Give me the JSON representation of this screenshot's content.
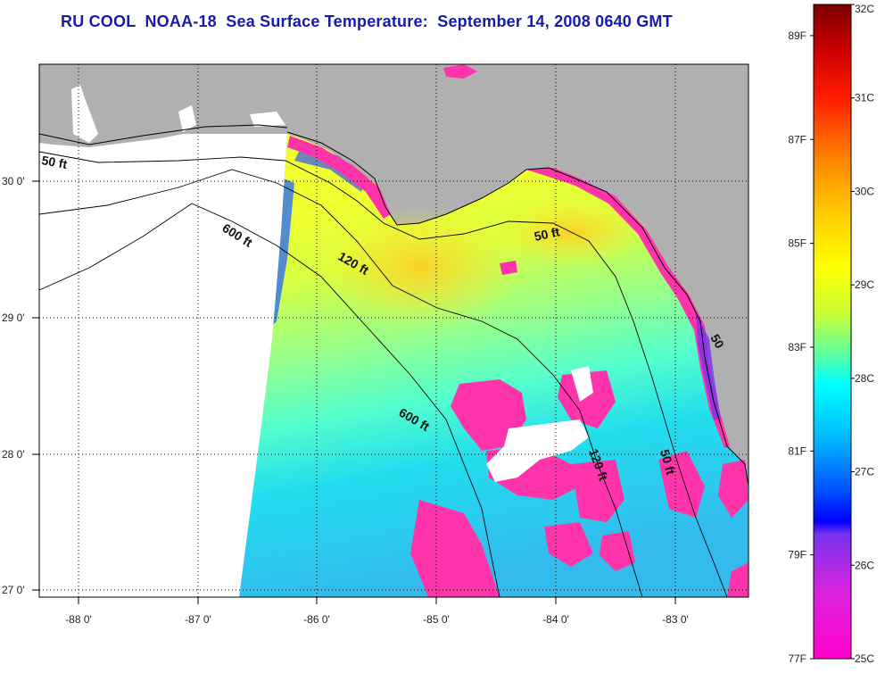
{
  "header": {
    "title": "RU COOL  NOAA-18  Sea Surface Temperature:  September 14, 2008 0640 GMT"
  },
  "map": {
    "lon_labels": [
      "-88 0'",
      "-87 0'",
      "-86 0'",
      "-85 0'",
      "-84 0'",
      "-83 0'"
    ],
    "lat_labels": [
      "30 0'",
      "29 0'",
      "28 0'",
      "27 0'"
    ],
    "contour_labels": {
      "ft50_west": "50 ft",
      "ft600_north": "600 ft",
      "ft120": "120 ft",
      "ft50_north": "50 ft",
      "ft50_east_top": "50",
      "ft600_south": "600 ft",
      "ft120_south": "120 ft",
      "ft50_east": "50 ft"
    },
    "colors": {
      "land": "#b0b0b0",
      "no_data": "#ffffff",
      "cold_pink": "#ff33aa"
    }
  },
  "color_scale": {
    "celsius_labels": [
      "32C",
      "31C",
      "30C",
      "29C",
      "28C",
      "27C",
      "26C",
      "25C"
    ],
    "fahrenheit_labels": [
      "89F",
      "87F",
      "85F",
      "83F",
      "81F",
      "79F",
      "77F"
    ],
    "celsius_range": [
      25,
      32
    ],
    "fahrenheit_range": [
      77,
      89.6
    ]
  }
}
